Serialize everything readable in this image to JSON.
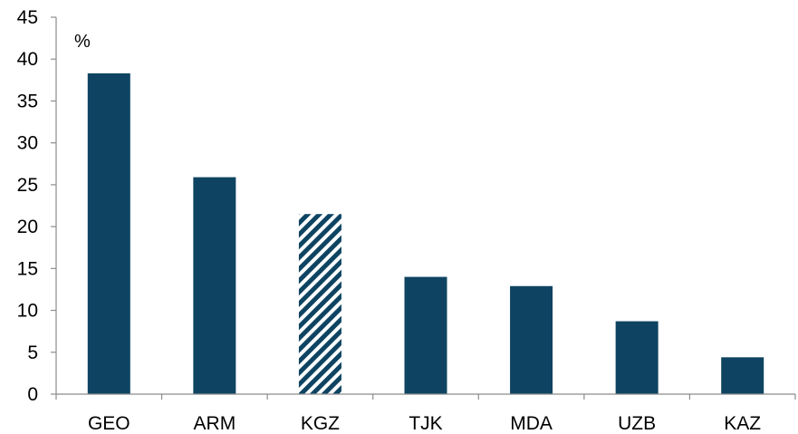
{
  "chart_data": {
    "type": "bar",
    "title": "",
    "xlabel": "",
    "ylabel": "",
    "unit_label": "%",
    "categories": [
      "GEO",
      "ARM",
      "KGZ",
      "TJK",
      "MDA",
      "UZB",
      "KAZ"
    ],
    "values": [
      38.3,
      25.9,
      21.5,
      14.0,
      12.9,
      8.7,
      4.4
    ],
    "hatched": [
      false,
      false,
      true,
      false,
      false,
      false,
      false
    ],
    "ylim": [
      0,
      45
    ],
    "yticks": [
      0,
      5,
      10,
      15,
      20,
      25,
      30,
      35,
      40,
      45
    ],
    "grid": false,
    "legend": "none",
    "colors": {
      "bar": "#0e4462",
      "axis": "#8c8c8c",
      "hatch_bg": "#ffffff"
    }
  }
}
